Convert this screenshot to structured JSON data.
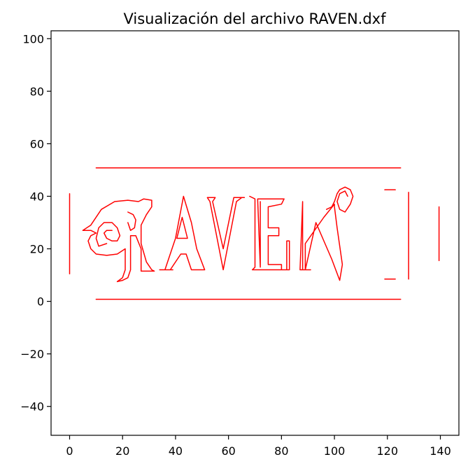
{
  "chart_data": {
    "type": "line",
    "title": "Visualización del archivo RAVEN.dxf",
    "xlabel": "",
    "ylabel": "",
    "xlim": [
      -7,
      147
    ],
    "ylim": [
      -51,
      103
    ],
    "xticks": [
      0,
      20,
      40,
      60,
      80,
      100,
      120,
      140
    ],
    "yticks": [
      -40,
      -20,
      0,
      20,
      40,
      60,
      80,
      100
    ],
    "xtick_labels": [
      "0",
      "20",
      "40",
      "60",
      "80",
      "100",
      "120",
      "140"
    ],
    "ytick_labels": [
      "−40",
      "−20",
      "0",
      "20",
      "40",
      "60",
      "80",
      "100"
    ],
    "grid": false,
    "legend": "none",
    "line_color": "#ff0000",
    "series": [
      {
        "id": "top-rule",
        "x": [
          10,
          125
        ],
        "y": [
          50.8,
          50.8
        ]
      },
      {
        "id": "bottom-rule",
        "x": [
          10,
          125
        ],
        "y": [
          0.8,
          0.8
        ]
      },
      {
        "id": "left-bar",
        "x": [
          0,
          0
        ],
        "y": [
          41,
          10.5
        ]
      },
      {
        "id": "right-bar-inner",
        "x": [
          128,
          128
        ],
        "y": [
          41.5,
          8.5
        ]
      },
      {
        "id": "right-bar-outer",
        "x": [
          139.5,
          139.5
        ],
        "y": [
          36,
          15.5
        ]
      },
      {
        "id": "tick-upper-right",
        "x": [
          119,
          123
        ],
        "y": [
          42.5,
          42.5
        ]
      },
      {
        "id": "tick-lower-right",
        "x": [
          119,
          123
        ],
        "y": [
          8.5,
          8.5
        ]
      },
      {
        "id": "letter-R-outer",
        "x": [
          5,
          8,
          12,
          17,
          22,
          26,
          28,
          31,
          31,
          29,
          27,
          27,
          29,
          31,
          32,
          31,
          27,
          27,
          25,
          23,
          23,
          22,
          20,
          18,
          20,
          21,
          21,
          18,
          14,
          10,
          8,
          7,
          8,
          10,
          8,
          5
        ],
        "y": [
          27,
          29,
          35,
          38,
          38.5,
          38,
          39,
          38.5,
          36,
          33,
          29,
          22,
          15,
          12,
          11.5,
          11.5,
          11.5,
          20,
          25,
          25,
          12,
          9,
          8,
          7.5,
          9,
          12,
          20,
          18,
          17.5,
          18,
          20,
          23,
          25,
          26,
          27,
          27
        ]
      },
      {
        "id": "letter-R-swirl",
        "x": [
          14,
          11,
          10,
          11,
          13,
          16,
          18,
          19,
          18,
          16,
          14,
          13,
          14,
          16
        ],
        "y": [
          22,
          21,
          24,
          28,
          30,
          30,
          28,
          25,
          23,
          23,
          24,
          26,
          27,
          27
        ]
      },
      {
        "id": "letter-R-inner",
        "x": [
          22,
          24,
          25,
          24.5,
          23,
          22
        ],
        "y": [
          34,
          33,
          31,
          28,
          27,
          30
        ]
      },
      {
        "id": "letter-A-outer",
        "x": [
          34,
          36,
          40,
          43,
          46,
          48,
          51,
          50,
          46,
          44,
          42,
          38,
          39,
          35
        ],
        "y": [
          12,
          12,
          24,
          40,
          30,
          20,
          12,
          12,
          12,
          18,
          18,
          12,
          12,
          12
        ]
      },
      {
        "id": "letter-A-inner",
        "x": [
          40.5,
          42.5,
          44.5,
          40.5
        ],
        "y": [
          24,
          32,
          24,
          24
        ]
      },
      {
        "id": "letter-V",
        "x": [
          55,
          52,
          53,
          58,
          63,
          65,
          64,
          66,
          62,
          58,
          54,
          55
        ],
        "y": [
          39.5,
          39.5,
          38,
          12,
          38,
          39.5,
          39.5,
          39.5,
          39.5,
          20,
          38,
          39.5
        ]
      },
      {
        "id": "letter-E",
        "x": [
          68,
          70,
          70,
          69,
          82,
          82,
          83,
          83,
          80,
          80,
          75,
          75,
          79,
          79,
          75,
          75,
          80,
          81,
          71,
          72,
          72
        ],
        "y": [
          40,
          39,
          13,
          12,
          12,
          23,
          23,
          12,
          12,
          14,
          14,
          25,
          25,
          28,
          28,
          36,
          37,
          39,
          39,
          13,
          38
        ]
      },
      {
        "id": "letter-N",
        "x": [
          87,
          89,
          93,
          99,
          102,
          103,
          101,
          100,
          100,
          96,
          89,
          89,
          91,
          88,
          88,
          87
        ],
        "y": [
          12,
          12,
          30,
          16,
          8,
          14,
          28,
          36,
          37,
          32,
          22,
          12,
          12,
          12,
          38,
          12
        ]
      },
      {
        "id": "N-flourish",
        "x": [
          97,
          99,
          100,
          101,
          102,
          104,
          106,
          107,
          106,
          104,
          102,
          101,
          102,
          104,
          105
        ],
        "y": [
          35,
          36,
          38,
          41,
          42.5,
          43.5,
          42.5,
          40,
          37,
          34,
          35,
          38,
          41,
          42,
          40
        ]
      }
    ]
  }
}
